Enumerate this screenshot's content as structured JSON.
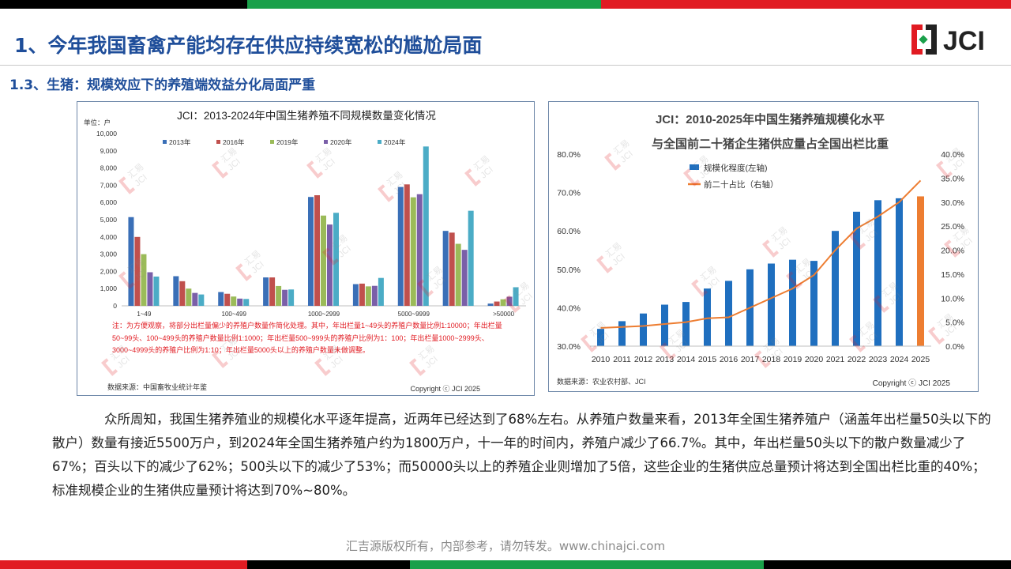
{
  "top_bar_colors": [
    "#000000",
    "#1aa04a",
    "#e11b22"
  ],
  "bottom_bar_colors": [
    "#e11b22",
    "#000000",
    "#1aa04a",
    "#000000"
  ],
  "header": {
    "title": "1、今年我国畜禽产能均存在供应持续宽松的尴尬局面",
    "subtitle": "1.3、生猪：规模效应下的养殖端效益分化局面严重",
    "logo_text": "JCI",
    "title_color": "#1f4e9a"
  },
  "left_chart": {
    "unit": "单位：户",
    "note": "注：为方便观察，将部分出栏量偏少的养殖户数量作简化处理。其中，年出栏量1~49头的养殖户数量比例1:10000；年出栏量50~99头、100~499头的养殖户数量比例1:1000；年出栏量500~999头的养殖户比例为1：100；年出栏量1000~2999头、3000~4999头的养殖户比例为1:10；年出栏量5000头以上的养殖户数量未做调整。",
    "source": "数据来源：中国畜牧业统计年鉴",
    "copyright": "Copyright ⓒ JCI 2025"
  },
  "right_chart": {
    "source": "数据来源：农业农村部、JCI",
    "copyright": "Copyright ⓒ JCI 2025"
  },
  "watermark_text": [
    "汇易",
    "JCI"
  ],
  "body_text": "众所周知，我国生猪养殖业的规模化水平逐年提高，近两年已经达到了68%左右。从养殖户数量来看，2013年全国生猪养殖户（涵盖年出栏量50头以下的散户）数量有接近5500万户，到2024年全国生猪养殖户约为1800万户，十一年的时间内，养殖户减少了66.7%。其中，年出栏量50头以下的散户数量减少了67%；百头以下的减少了62%；500头以下的减少了53%；而50000头以上的养殖企业则增加了5倍，这些企业的生猪供应总量预计将达到全国出栏比重的40%；标准规模企业的生猪供应量预计将达到70%~80%。",
  "footer": "汇吉源版权所有，内部参考，请勿转发。www.chinajci.com",
  "chart_data": [
    {
      "type": "bar",
      "title": "JCI：2013-2024年中国生猪养殖不同规模数量变化情况",
      "categories": [
        "1~49",
        "",
        "100~499",
        "",
        "1000~2999",
        "",
        "5000~9999",
        "",
        ">50000"
      ],
      "ylim": [
        0,
        10000
      ],
      "yticks": [
        "0",
        "1,000",
        "2,000",
        "3,000",
        "4,000",
        "5,000",
        "6,000",
        "7,000",
        "8,000",
        "9,000",
        "10,000"
      ],
      "series": [
        {
          "name": "2013年",
          "color": "#3a6fb7",
          "values": [
            5150,
            1720,
            800,
            1650,
            6320,
            1260,
            6900,
            4350,
            130
          ]
        },
        {
          "name": "2016年",
          "color": "#c0504d",
          "values": [
            4000,
            1430,
            700,
            1650,
            6420,
            1290,
            7050,
            4250,
            250
          ]
        },
        {
          "name": "2019年",
          "color": "#9bbb59",
          "values": [
            3000,
            1000,
            540,
            1150,
            5240,
            1130,
            6300,
            3600,
            380
          ]
        },
        {
          "name": "2020年",
          "color": "#7a5fa8",
          "values": [
            1950,
            750,
            420,
            930,
            4720,
            1160,
            6480,
            3250,
            530
          ]
        },
        {
          "name": "2024年",
          "color": "#4bacc6",
          "values": [
            1700,
            660,
            400,
            950,
            5400,
            1620,
            9250,
            5520,
            1080
          ]
        }
      ]
    },
    {
      "type": "bar+line",
      "title": "JCI：2010-2025年中国生猪养殖规模化水平",
      "subtitle": "与全国前二十猪企生猪供应量占全国出栏比重",
      "x": [
        "2010",
        "2011",
        "2012",
        "2013",
        "2014",
        "2015",
        "2016",
        "2017",
        "2018",
        "2019",
        "2020",
        "2021",
        "2022",
        "2023",
        "2024",
        "2025"
      ],
      "y_left_lim": [
        30,
        80
      ],
      "y_left_ticks": [
        "30.0%",
        "40.0%",
        "50.0%",
        "60.0%",
        "70.0%",
        "80.0%"
      ],
      "y_right_lim": [
        0,
        40
      ],
      "y_right_ticks": [
        "0.0%",
        "5.0%",
        "10.0%",
        "15.0%",
        "20.0%",
        "25.0%",
        "30.0%",
        "35.0%",
        "40.0%"
      ],
      "series": [
        {
          "name": "规模化程度(左轴)",
          "type": "bar",
          "axis": "left",
          "color": "#1f6fbf",
          "highlight_last_color": "#ed7d31",
          "values": [
            34.5,
            36.5,
            38.5,
            40.8,
            41.5,
            45.0,
            47.0,
            50.0,
            51.5,
            52.5,
            52.2,
            60.0,
            65.0,
            68.0,
            68.5,
            69.0
          ]
        },
        {
          "name": "前二十占比（右轴）",
          "type": "line",
          "axis": "right",
          "color": "#ed7d31",
          "values": [
            3.8,
            4.0,
            4.2,
            4.6,
            5.0,
            5.8,
            6.0,
            8.0,
            10.0,
            12.0,
            14.8,
            20.0,
            24.5,
            27.0,
            30.0,
            34.5
          ]
        }
      ]
    }
  ]
}
